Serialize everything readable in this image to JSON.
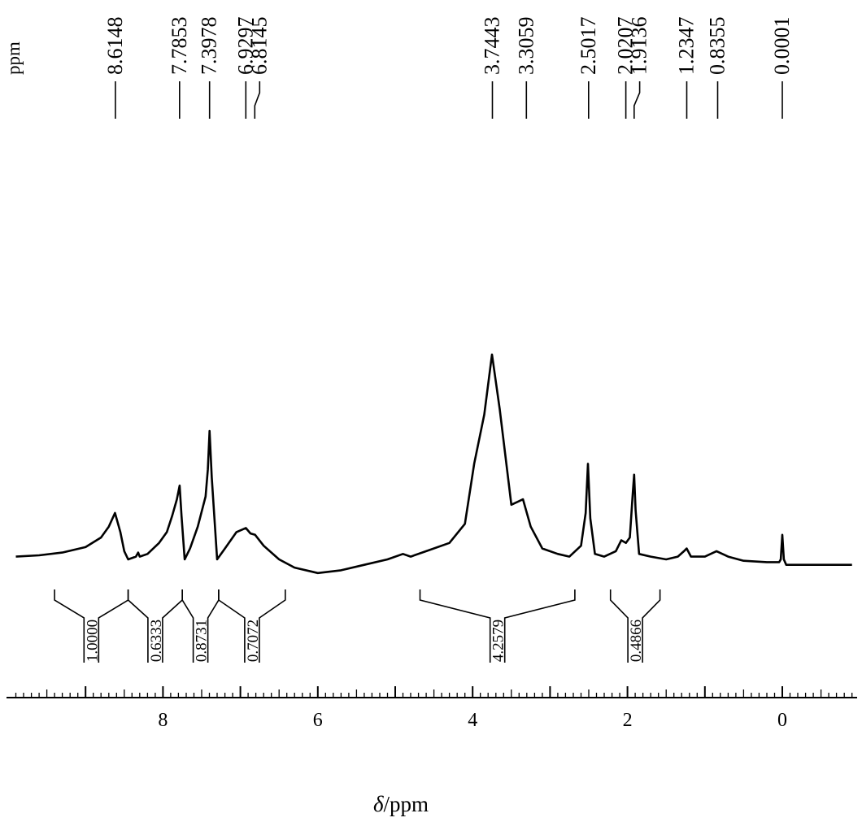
{
  "chart_data": {
    "type": "line",
    "unit_label": "ppm",
    "xlabel_symbol": "δ",
    "xlabel_rest": "/ppm",
    "xlim": [
      9.9,
      -0.9
    ],
    "x_reversed": true,
    "x_ticks": [
      {
        "value": 8,
        "label": "8"
      },
      {
        "value": 6,
        "label": "6"
      },
      {
        "value": 4,
        "label": "4"
      },
      {
        "value": 2,
        "label": "2"
      },
      {
        "value": 0,
        "label": "0"
      }
    ],
    "minor_tick_step": 0.1,
    "peak_labels": [
      {
        "label": "8.6148",
        "value": 8.6148
      },
      {
        "label": "7.7853",
        "value": 7.7853
      },
      {
        "label": "7.3978",
        "value": 7.3978
      },
      {
        "label": "6.9297",
        "value": 6.9297
      },
      {
        "label": "6.8145",
        "value": 6.8145
      },
      {
        "label": "3.7443",
        "value": 3.7443
      },
      {
        "label": "3.3059",
        "value": 3.3059
      },
      {
        "label": "2.5017",
        "value": 2.5017
      },
      {
        "label": "2.0207",
        "value": 2.0207
      },
      {
        "label": "1.9136",
        "value": 1.9136
      },
      {
        "label": "1.2347",
        "value": 1.2347
      },
      {
        "label": "0.8355",
        "value": 0.8355
      },
      {
        "label": "0.0001",
        "value": 0.0001
      }
    ],
    "integrals": [
      {
        "from": 9.4,
        "to": 8.45,
        "value": "1.0000"
      },
      {
        "from": 8.45,
        "to": 7.75,
        "value": "0.6333"
      },
      {
        "from": 7.75,
        "to": 7.28,
        "value": "0.8731"
      },
      {
        "from": 7.28,
        "to": 6.42,
        "value": "0.7072"
      },
      {
        "from": 4.68,
        "to": 2.68,
        "value": "4.2579"
      },
      {
        "from": 2.22,
        "to": 1.58,
        "value": "0.4866"
      }
    ],
    "spectrum": {
      "x": [
        9.9,
        9.6,
        9.3,
        9.0,
        8.8,
        8.7,
        8.62,
        8.55,
        8.5,
        8.45,
        8.35,
        8.32,
        8.3,
        8.2,
        8.05,
        7.95,
        7.88,
        7.82,
        7.785,
        7.76,
        7.72,
        7.65,
        7.55,
        7.45,
        7.42,
        7.398,
        7.37,
        7.3,
        7.2,
        7.05,
        6.93,
        6.87,
        6.81,
        6.7,
        6.5,
        6.3,
        6.0,
        5.7,
        5.4,
        5.1,
        4.9,
        4.8,
        4.6,
        4.3,
        4.1,
        3.98,
        3.85,
        3.75,
        3.65,
        3.5,
        3.35,
        3.25,
        3.1,
        2.9,
        2.75,
        2.6,
        2.54,
        2.51,
        2.48,
        2.42,
        2.3,
        2.15,
        2.08,
        2.02,
        1.97,
        1.93,
        1.914,
        1.895,
        1.85,
        1.7,
        1.5,
        1.35,
        1.27,
        1.235,
        1.18,
        1.0,
        0.85,
        0.7,
        0.5,
        0.2,
        0.04,
        0.02,
        0.0001,
        -0.02,
        -0.05,
        -0.3,
        -0.6,
        -0.9
      ],
      "y": [
        0.01,
        0.015,
        0.025,
        0.045,
        0.08,
        0.12,
        0.17,
        0.1,
        0.03,
        0.0,
        0.01,
        0.025,
        0.01,
        0.02,
        0.06,
        0.1,
        0.16,
        0.22,
        0.27,
        0.16,
        0.0,
        0.04,
        0.12,
        0.23,
        0.33,
        0.47,
        0.3,
        0.0,
        0.04,
        0.1,
        0.115,
        0.095,
        0.09,
        0.05,
        0.0,
        -0.03,
        -0.05,
        -0.04,
        -0.02,
        0.0,
        0.02,
        0.01,
        0.03,
        0.06,
        0.13,
        0.35,
        0.53,
        0.75,
        0.55,
        0.2,
        0.22,
        0.12,
        0.04,
        0.02,
        0.01,
        0.05,
        0.17,
        0.35,
        0.15,
        0.02,
        0.01,
        0.03,
        0.07,
        0.06,
        0.08,
        0.25,
        0.31,
        0.18,
        0.02,
        0.01,
        0.0,
        0.01,
        0.03,
        0.04,
        0.01,
        0.01,
        0.03,
        0.01,
        -0.005,
        -0.01,
        -0.01,
        0.0,
        0.09,
        0.0,
        -0.02,
        -0.02,
        -0.02,
        -0.02
      ]
    }
  }
}
